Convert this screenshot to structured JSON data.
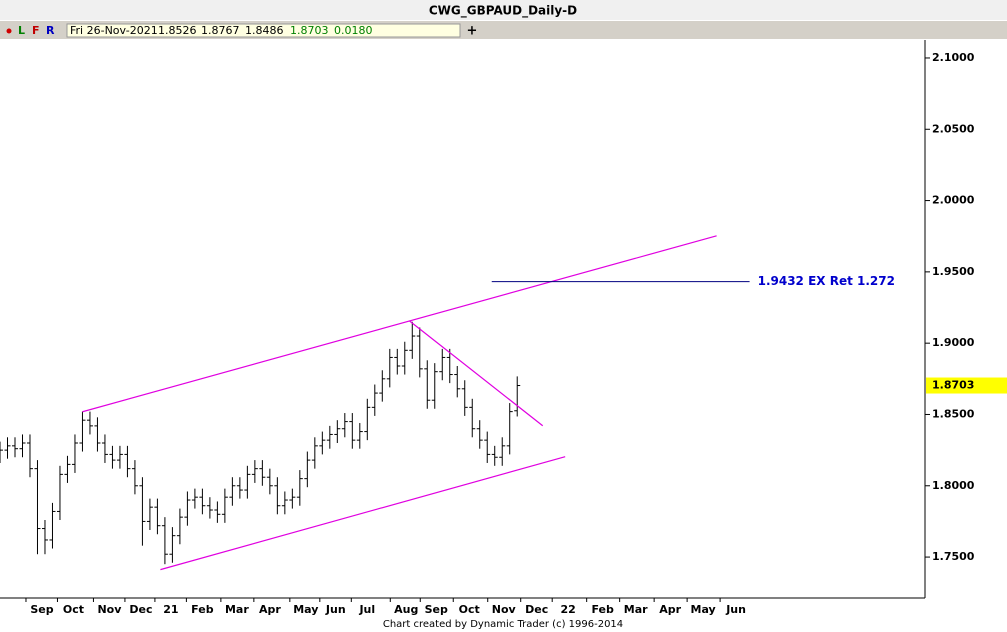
{
  "chart_data": {
    "type": "ohlc",
    "title": "CWG_GBPAUD_Daily-D",
    "color": "#000000",
    "x": [
      0,
      5,
      10,
      15,
      20,
      25,
      30,
      35,
      40,
      45,
      50,
      55,
      60,
      65,
      70,
      75,
      80,
      85,
      90,
      95,
      100,
      105,
      110,
      115,
      120,
      125,
      130,
      135,
      140,
      145,
      150,
      155,
      160,
      165,
      170,
      175,
      180,
      185,
      190,
      195,
      200,
      205,
      210,
      215,
      220,
      225,
      230,
      235,
      240,
      245,
      250,
      255,
      260,
      265,
      270,
      275,
      280,
      285,
      290,
      295,
      300,
      305,
      310,
      315,
      320,
      325,
      330,
      335,
      340,
      345
    ],
    "open": [
      1.822,
      1.825,
      1.828,
      1.826,
      1.83,
      1.812,
      1.77,
      1.762,
      1.782,
      1.808,
      1.815,
      1.83,
      1.846,
      1.842,
      1.83,
      1.822,
      1.818,
      1.822,
      1.812,
      1.8,
      1.775,
      1.785,
      1.772,
      1.752,
      1.765,
      1.778,
      1.79,
      1.792,
      1.786,
      1.783,
      1.78,
      1.792,
      1.8,
      1.797,
      1.808,
      1.812,
      1.806,
      1.8,
      1.786,
      1.79,
      1.792,
      1.805,
      1.818,
      1.828,
      1.832,
      1.836,
      1.84,
      1.845,
      1.832,
      1.838,
      1.855,
      1.865,
      1.875,
      1.89,
      1.884,
      1.895,
      1.905,
      1.882,
      1.86,
      1.88,
      1.89,
      1.878,
      1.868,
      1.855,
      1.84,
      1.832,
      1.822,
      1.82,
      1.828,
      1.8526
    ],
    "high": [
      1.831,
      1.834,
      1.834,
      1.836,
      1.836,
      1.818,
      1.776,
      1.788,
      1.814,
      1.821,
      1.836,
      1.852,
      1.852,
      1.848,
      1.836,
      1.828,
      1.828,
      1.828,
      1.818,
      1.806,
      1.791,
      1.791,
      1.778,
      1.771,
      1.784,
      1.796,
      1.798,
      1.798,
      1.792,
      1.789,
      1.798,
      1.806,
      1.806,
      1.814,
      1.818,
      1.818,
      1.812,
      1.806,
      1.796,
      1.798,
      1.811,
      1.824,
      1.834,
      1.838,
      1.842,
      1.846,
      1.851,
      1.851,
      1.844,
      1.861,
      1.871,
      1.881,
      1.896,
      1.896,
      1.901,
      1.915,
      1.911,
      1.888,
      1.886,
      1.896,
      1.896,
      1.884,
      1.874,
      1.861,
      1.846,
      1.838,
      1.828,
      1.834,
      1.858,
      1.8767
    ],
    "low": [
      1.816,
      1.819,
      1.82,
      1.82,
      1.806,
      1.752,
      1.752,
      1.756,
      1.776,
      1.802,
      1.809,
      1.824,
      1.836,
      1.824,
      1.816,
      1.812,
      1.812,
      1.806,
      1.794,
      1.758,
      1.769,
      1.766,
      1.745,
      1.746,
      1.759,
      1.772,
      1.784,
      1.78,
      1.777,
      1.774,
      1.774,
      1.786,
      1.791,
      1.791,
      1.802,
      1.8,
      1.794,
      1.78,
      1.78,
      1.784,
      1.786,
      1.799,
      1.812,
      1.822,
      1.826,
      1.83,
      1.834,
      1.826,
      1.826,
      1.832,
      1.849,
      1.859,
      1.869,
      1.878,
      1.878,
      1.889,
      1.876,
      1.854,
      1.854,
      1.874,
      1.872,
      1.862,
      1.849,
      1.834,
      1.826,
      1.816,
      1.814,
      1.814,
      1.822,
      1.8486
    ],
    "close": [
      1.825,
      1.828,
      1.826,
      1.83,
      1.812,
      1.77,
      1.762,
      1.782,
      1.808,
      1.815,
      1.83,
      1.846,
      1.842,
      1.83,
      1.822,
      1.818,
      1.822,
      1.812,
      1.8,
      1.775,
      1.785,
      1.772,
      1.752,
      1.765,
      1.778,
      1.79,
      1.792,
      1.786,
      1.783,
      1.78,
      1.792,
      1.8,
      1.797,
      1.808,
      1.812,
      1.806,
      1.8,
      1.786,
      1.79,
      1.792,
      1.805,
      1.818,
      1.828,
      1.832,
      1.836,
      1.84,
      1.845,
      1.832,
      1.838,
      1.855,
      1.865,
      1.875,
      1.89,
      1.884,
      1.895,
      1.905,
      1.882,
      1.86,
      1.88,
      1.89,
      1.878,
      1.868,
      1.855,
      1.84,
      1.832,
      1.822,
      1.82,
      1.828,
      1.852,
      1.8703
    ],
    "xlim": [
      0,
      617
    ],
    "xticks": [
      {
        "value": 28,
        "label": "Sep"
      },
      {
        "value": 49,
        "label": "Oct"
      },
      {
        "value": 73,
        "label": "Nov"
      },
      {
        "value": 94,
        "label": "Dec"
      },
      {
        "value": 114,
        "label": "21"
      },
      {
        "value": 135,
        "label": "Feb"
      },
      {
        "value": 158,
        "label": "Mar"
      },
      {
        "value": 180,
        "label": "Apr"
      },
      {
        "value": 204,
        "label": "May"
      },
      {
        "value": 224,
        "label": "Jun"
      },
      {
        "value": 245,
        "label": "Jul"
      },
      {
        "value": 271,
        "label": "Aug"
      },
      {
        "value": 291,
        "label": "Sep"
      },
      {
        "value": 313,
        "label": "Oct"
      },
      {
        "value": 336,
        "label": "Nov"
      },
      {
        "value": 358,
        "label": "Dec"
      },
      {
        "value": 379,
        "label": "22"
      },
      {
        "value": 402,
        "label": "Feb"
      },
      {
        "value": 424,
        "label": "Mar"
      },
      {
        "value": 447,
        "label": "Apr"
      },
      {
        "value": 469,
        "label": "May"
      },
      {
        "value": 491,
        "label": "Jun"
      }
    ],
    "ylim": [
      1.7213,
      2.1126
    ],
    "yticks": [
      {
        "value": 1.75,
        "label": "1.7500"
      },
      {
        "value": 1.8,
        "label": "1.8000"
      },
      {
        "value": 1.85,
        "label": "1.8500"
      },
      {
        "value": 1.9,
        "label": "1.9000"
      },
      {
        "value": 1.95,
        "label": "1.9500"
      },
      {
        "value": 2.0,
        "label": "2.0000"
      },
      {
        "value": 2.05,
        "label": "2.0500"
      },
      {
        "value": 2.1,
        "label": "2.1000"
      }
    ],
    "trendline_color": "#e000e0",
    "trendlines": [
      {
        "x": [
          55,
          478
        ],
        "y": [
          1.8519,
          1.9753
        ]
      },
      {
        "x": [
          107,
          377
        ],
        "y": [
          1.7412,
          1.8204
        ]
      },
      {
        "x": [
          273,
          362
        ],
        "y": [
          1.9157,
          1.8421
        ]
      }
    ],
    "level": {
      "value": 1.9432,
      "x": [
        328,
        500
      ],
      "color": "#000080",
      "label": "1.9432 EX Ret 1.272"
    },
    "last_price_color": "#ffff00"
  },
  "toolbar": {
    "buttons": [
      "L",
      "F",
      "R"
    ],
    "date": "Fri 26-Nov-2021",
    "change": "0.0180",
    "add": "+"
  },
  "footer": "Chart created by Dynamic Trader  (c) 1996-2014"
}
